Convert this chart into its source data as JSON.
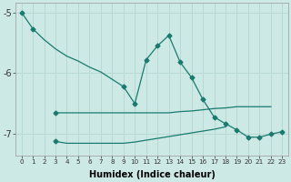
{
  "xlabel": "Humidex (Indice chaleur)",
  "ylim": [
    -7.35,
    -4.85
  ],
  "yticks": [
    -7,
    -6,
    -5
  ],
  "xlim": [
    -0.5,
    23.5
  ],
  "bg_color": "#cce9e5",
  "grid_color": "#b8d8d4",
  "line_color": "#1a7a6e",
  "markersize": 2.5,
  "linewidth": 0.9,
  "line1_x": [
    0,
    1,
    2,
    3,
    4,
    5,
    6,
    7,
    8,
    9,
    10,
    11,
    12,
    13,
    14,
    15,
    16,
    17,
    18,
    19,
    20,
    21,
    22,
    23
  ],
  "line1_y": [
    -5.0,
    -5.27,
    -5.45,
    -5.6,
    -5.72,
    -5.8,
    -5.9,
    -5.98,
    -6.1,
    -6.22,
    -6.5,
    -5.78,
    -5.55,
    -5.38,
    -5.82,
    -6.07,
    -6.43,
    -6.72,
    -6.83,
    -6.93,
    -7.05,
    -7.05,
    -7.0,
    -6.96
  ],
  "line1_markers": [
    0,
    1,
    9,
    10,
    11,
    12,
    13,
    14,
    15,
    16,
    17,
    18,
    19,
    20,
    21,
    22,
    23
  ],
  "line2_x": [
    3,
    4,
    5,
    6,
    7,
    8,
    9,
    10,
    11,
    12,
    13,
    14,
    15,
    16,
    17,
    18,
    19,
    20,
    21,
    22
  ],
  "line2_y": [
    -6.65,
    -6.65,
    -6.65,
    -6.65,
    -6.65,
    -6.65,
    -6.65,
    -6.65,
    -6.65,
    -6.65,
    -6.65,
    -6.63,
    -6.62,
    -6.6,
    -6.58,
    -6.57,
    -6.55,
    -6.55,
    -6.55,
    -6.55
  ],
  "line2_markers": [
    3
  ],
  "line3_x": [
    3,
    4,
    5,
    6,
    7,
    8,
    9,
    10,
    11,
    12,
    13,
    14,
    15,
    16,
    17,
    18
  ],
  "line3_y": [
    -7.12,
    -7.15,
    -7.15,
    -7.15,
    -7.15,
    -7.15,
    -7.15,
    -7.13,
    -7.1,
    -7.07,
    -7.04,
    -7.01,
    -6.98,
    -6.95,
    -6.92,
    -6.88
  ],
  "line3_markers": [
    3
  ]
}
